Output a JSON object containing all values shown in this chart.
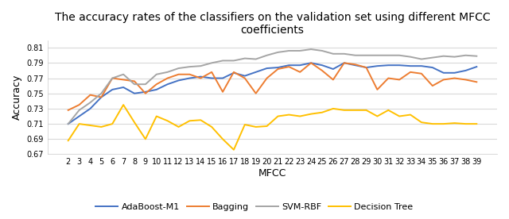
{
  "title": "The accuracy rates of the classifiers on the validation set using different MFCC\ncoefficients",
  "xlabel": "MFCC",
  "ylabel": "Accuracy",
  "x_values": [
    2,
    3,
    4,
    5,
    6,
    7,
    8,
    9,
    10,
    11,
    12,
    13,
    14,
    15,
    16,
    17,
    18,
    19,
    20,
    21,
    22,
    23,
    24,
    25,
    26,
    27,
    28,
    29,
    30,
    31,
    32,
    33,
    34,
    35,
    36,
    37,
    38,
    39
  ],
  "adaboost": [
    0.71,
    0.72,
    0.73,
    0.745,
    0.755,
    0.758,
    0.75,
    0.752,
    0.755,
    0.762,
    0.767,
    0.77,
    0.772,
    0.77,
    0.77,
    0.777,
    0.773,
    0.778,
    0.783,
    0.784,
    0.787,
    0.787,
    0.79,
    0.787,
    0.782,
    0.79,
    0.787,
    0.784,
    0.786,
    0.787,
    0.787,
    0.786,
    0.786,
    0.784,
    0.777,
    0.777,
    0.78,
    0.785
  ],
  "bagging": [
    0.728,
    0.735,
    0.748,
    0.745,
    0.77,
    0.768,
    0.766,
    0.75,
    0.762,
    0.77,
    0.775,
    0.775,
    0.77,
    0.778,
    0.752,
    0.778,
    0.77,
    0.75,
    0.77,
    0.782,
    0.785,
    0.778,
    0.79,
    0.78,
    0.768,
    0.79,
    0.788,
    0.784,
    0.755,
    0.77,
    0.768,
    0.778,
    0.776,
    0.76,
    0.768,
    0.77,
    0.768,
    0.765
  ],
  "svm_rbf": [
    0.71,
    0.728,
    0.738,
    0.75,
    0.77,
    0.775,
    0.762,
    0.762,
    0.775,
    0.778,
    0.783,
    0.785,
    0.786,
    0.79,
    0.793,
    0.793,
    0.796,
    0.795,
    0.8,
    0.804,
    0.806,
    0.806,
    0.808,
    0.806,
    0.802,
    0.802,
    0.8,
    0.8,
    0.8,
    0.8,
    0.8,
    0.798,
    0.795,
    0.797,
    0.799,
    0.798,
    0.8,
    0.799
  ],
  "dec_tree": [
    0.688,
    0.71,
    0.708,
    0.706,
    0.71,
    0.735,
    0.712,
    0.69,
    0.72,
    0.714,
    0.706,
    0.714,
    0.715,
    0.706,
    0.69,
    0.676,
    0.709,
    0.706,
    0.707,
    0.72,
    0.722,
    0.72,
    0.723,
    0.725,
    0.73,
    0.728,
    0.728,
    0.728,
    0.72,
    0.728,
    0.72,
    0.722,
    0.712,
    0.71,
    0.71,
    0.711,
    0.71,
    0.71
  ],
  "colors": {
    "adaboost": "#4472C4",
    "bagging": "#ED7D31",
    "svm_rbf": "#A5A5A5",
    "dec_tree": "#FFC000"
  },
  "ylim": [
    0.67,
    0.82
  ],
  "yticks": [
    0.67,
    0.69,
    0.71,
    0.73,
    0.75,
    0.77,
    0.79,
    0.81
  ],
  "legend_labels": [
    "AdaBoost-M1",
    "Bagging",
    "SVM-RBF",
    "Decision Tree"
  ],
  "title_fontsize": 10,
  "axis_fontsize": 9,
  "tick_fontsize": 7,
  "background_color": "#FFFFFF",
  "grid_color": "#D9D9D9",
  "linewidth": 1.4
}
